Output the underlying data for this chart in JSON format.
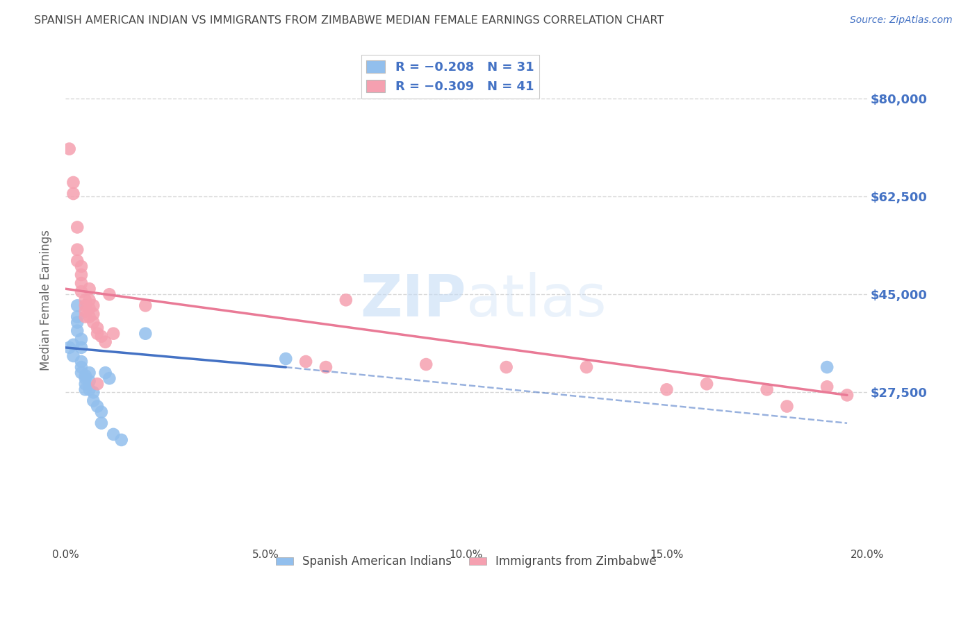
{
  "title": "SPANISH AMERICAN INDIAN VS IMMIGRANTS FROM ZIMBABWE MEDIAN FEMALE EARNINGS CORRELATION CHART",
  "source": "Source: ZipAtlas.com",
  "ylabel": "Median Female Earnings",
  "ytick_labels": [
    "$27,500",
    "$45,000",
    "$62,500",
    "$80,000"
  ],
  "ytick_values": [
    27500,
    45000,
    62500,
    80000
  ],
  "y_min": 0,
  "y_max": 88000,
  "x_min": 0.0,
  "x_max": 0.2,
  "watermark_zip": "ZIP",
  "watermark_atlas": "atlas",
  "legend_label_blue": "Spanish American Indians",
  "legend_label_pink": "Immigrants from Zimbabwe",
  "blue_color": "#92BFED",
  "pink_color": "#F5A0B0",
  "blue_line_color": "#4472C4",
  "pink_line_color": "#E97A96",
  "background_color": "#FFFFFF",
  "grid_color": "#CCCCCC",
  "title_color": "#444444",
  "title_fontsize": 11.5,
  "axis_label_color": "#666666",
  "blue_scatter": [
    [
      0.001,
      35500
    ],
    [
      0.002,
      36000
    ],
    [
      0.002,
      34000
    ],
    [
      0.003,
      43000
    ],
    [
      0.003,
      41000
    ],
    [
      0.003,
      40000
    ],
    [
      0.003,
      38500
    ],
    [
      0.004,
      37000
    ],
    [
      0.004,
      35500
    ],
    [
      0.004,
      33000
    ],
    [
      0.004,
      32000
    ],
    [
      0.004,
      31000
    ],
    [
      0.005,
      30500
    ],
    [
      0.005,
      30000
    ],
    [
      0.005,
      29000
    ],
    [
      0.005,
      28000
    ],
    [
      0.006,
      31000
    ],
    [
      0.006,
      29500
    ],
    [
      0.006,
      28000
    ],
    [
      0.007,
      27500
    ],
    [
      0.007,
      26000
    ],
    [
      0.008,
      25000
    ],
    [
      0.009,
      24000
    ],
    [
      0.009,
      22000
    ],
    [
      0.01,
      31000
    ],
    [
      0.011,
      30000
    ],
    [
      0.012,
      20000
    ],
    [
      0.014,
      19000
    ],
    [
      0.02,
      38000
    ],
    [
      0.055,
      33500
    ],
    [
      0.19,
      32000
    ]
  ],
  "pink_scatter": [
    [
      0.001,
      71000
    ],
    [
      0.002,
      65000
    ],
    [
      0.002,
      63000
    ],
    [
      0.003,
      57000
    ],
    [
      0.003,
      53000
    ],
    [
      0.003,
      51000
    ],
    [
      0.004,
      50000
    ],
    [
      0.004,
      48500
    ],
    [
      0.004,
      47000
    ],
    [
      0.004,
      45500
    ],
    [
      0.005,
      44000
    ],
    [
      0.005,
      43000
    ],
    [
      0.005,
      42000
    ],
    [
      0.005,
      41000
    ],
    [
      0.006,
      46000
    ],
    [
      0.006,
      44000
    ],
    [
      0.006,
      42500
    ],
    [
      0.006,
      41000
    ],
    [
      0.007,
      43000
    ],
    [
      0.007,
      41500
    ],
    [
      0.007,
      40000
    ],
    [
      0.008,
      39000
    ],
    [
      0.008,
      38000
    ],
    [
      0.008,
      29000
    ],
    [
      0.009,
      37500
    ],
    [
      0.01,
      36500
    ],
    [
      0.011,
      45000
    ],
    [
      0.012,
      38000
    ],
    [
      0.02,
      43000
    ],
    [
      0.06,
      33000
    ],
    [
      0.065,
      32000
    ],
    [
      0.07,
      44000
    ],
    [
      0.09,
      32500
    ],
    [
      0.11,
      32000
    ],
    [
      0.13,
      32000
    ],
    [
      0.15,
      28000
    ],
    [
      0.16,
      29000
    ],
    [
      0.175,
      28000
    ],
    [
      0.18,
      25000
    ],
    [
      0.19,
      28500
    ],
    [
      0.195,
      27000
    ]
  ],
  "blue_trendline_solid": [
    [
      0.0,
      35500
    ],
    [
      0.055,
      32000
    ]
  ],
  "blue_trendline_dashed": [
    [
      0.055,
      32000
    ],
    [
      0.195,
      22000
    ]
  ],
  "pink_trendline": [
    [
      0.0,
      46000
    ],
    [
      0.195,
      27000
    ]
  ],
  "xticks": [
    0.0,
    0.05,
    0.1,
    0.15,
    0.2
  ],
  "xticklabels": [
    "0.0%",
    "5.0%",
    "10.0%",
    "15.0%",
    "20.0%"
  ]
}
